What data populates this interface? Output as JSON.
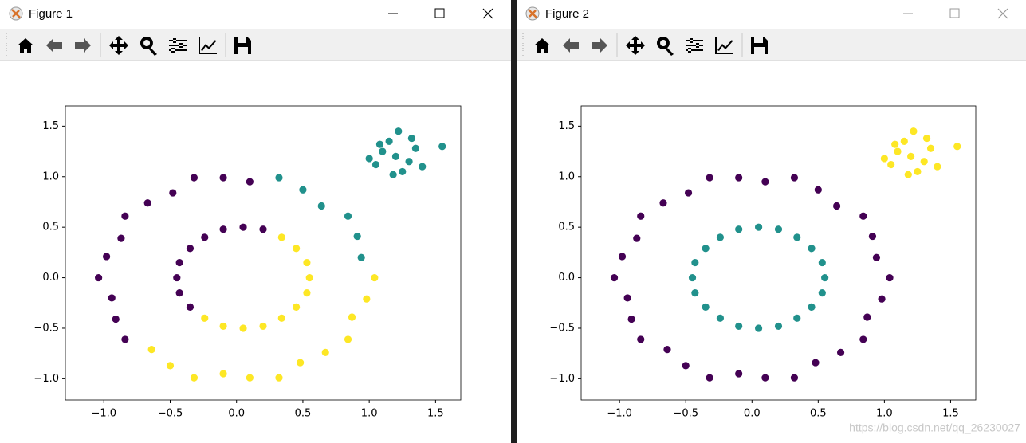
{
  "windows": [
    {
      "title": "Figure 1"
    },
    {
      "title": "Figure 2"
    }
  ],
  "watermark": "https://blog.csdn.net/qq_26230027",
  "chart_data": [
    {
      "type": "scatter",
      "xlim": [
        -1.29,
        1.69
      ],
      "ylim": [
        -1.21,
        1.7
      ],
      "xticks": [
        {
          "value": -1,
          "label": "−1.0"
        },
        {
          "value": -0.5,
          "label": "−0.5"
        },
        {
          "value": 0,
          "label": "0.0"
        },
        {
          "value": 0.5,
          "label": "0.5"
        },
        {
          "value": 1,
          "label": "1.0"
        },
        {
          "value": 1.5,
          "label": "1.5"
        }
      ],
      "yticks": [
        {
          "value": -1,
          "label": "−1.0"
        },
        {
          "value": -0.5,
          "label": "−0.5"
        },
        {
          "value": 0,
          "label": "0.0"
        },
        {
          "value": 0.5,
          "label": "0.5"
        },
        {
          "value": 1,
          "label": "1.0"
        },
        {
          "value": 1.5,
          "label": "1.5"
        }
      ],
      "series": [
        {
          "color": "#440154",
          "x": [
            0.1,
            -0.1,
            -0.32,
            -0.48,
            -0.67,
            -0.84,
            -0.87,
            -0.98,
            -1.04,
            -0.94,
            -0.91,
            -0.84,
            0.2,
            0.05,
            -0.1,
            -0.24,
            -0.35,
            -0.43,
            -0.45,
            -0.43,
            -0.35
          ],
          "values": [
            0.95,
            0.99,
            0.99,
            0.84,
            0.74,
            0.61,
            0.39,
            0.21,
            0.0,
            -0.2,
            -0.41,
            -0.61,
            0.48,
            0.5,
            0.48,
            0.4,
            0.29,
            0.15,
            0.0,
            -0.15,
            -0.29
          ]
        },
        {
          "color": "#21918c",
          "x": [
            0.94,
            0.91,
            0.84,
            0.64,
            0.5,
            0.32,
            1.2,
            1.1,
            1.3,
            1.15,
            1.25,
            1.05,
            1.35,
            1.22,
            1.0,
            1.4,
            1.18,
            1.32,
            1.55,
            1.08
          ],
          "values": [
            0.2,
            0.41,
            0.61,
            0.71,
            0.87,
            0.99,
            1.2,
            1.25,
            1.15,
            1.35,
            1.05,
            1.12,
            1.28,
            1.45,
            1.18,
            1.1,
            1.02,
            1.38,
            1.3,
            1.32
          ]
        },
        {
          "color": "#fde725",
          "x": [
            -0.64,
            -0.5,
            -0.32,
            -0.1,
            0.1,
            0.32,
            0.48,
            0.67,
            0.84,
            0.87,
            0.98,
            1.04,
            -0.24,
            -0.1,
            0.05,
            0.2,
            0.34,
            0.45,
            0.53,
            0.55,
            0.53,
            0.45,
            0.34
          ],
          "values": [
            -0.71,
            -0.87,
            -0.99,
            -0.95,
            -0.99,
            -0.99,
            -0.84,
            -0.74,
            -0.61,
            -0.39,
            -0.21,
            0.0,
            -0.4,
            -0.48,
            -0.5,
            -0.48,
            -0.4,
            -0.29,
            -0.15,
            0.0,
            0.15,
            0.29,
            0.4
          ]
        }
      ]
    },
    {
      "type": "scatter",
      "xlim": [
        -1.29,
        1.69
      ],
      "ylim": [
        -1.21,
        1.7
      ],
      "xticks": [
        {
          "value": -1,
          "label": "−1.0"
        },
        {
          "value": -0.5,
          "label": "−0.5"
        },
        {
          "value": 0,
          "label": "0.0"
        },
        {
          "value": 0.5,
          "label": "0.5"
        },
        {
          "value": 1,
          "label": "1.0"
        },
        {
          "value": 1.5,
          "label": "1.5"
        }
      ],
      "yticks": [
        {
          "value": -1,
          "label": "−1.0"
        },
        {
          "value": -0.5,
          "label": "−0.5"
        },
        {
          "value": 0,
          "label": "0.0"
        },
        {
          "value": 0.5,
          "label": "0.5"
        },
        {
          "value": 1,
          "label": "1.0"
        },
        {
          "value": 1.5,
          "label": "1.5"
        }
      ],
      "series": [
        {
          "color": "#440154",
          "x": [
            1.04,
            0.94,
            0.91,
            0.84,
            0.64,
            0.5,
            0.32,
            0.1,
            -0.1,
            -0.32,
            -0.48,
            -0.67,
            -0.84,
            -0.87,
            -0.98,
            -1.04,
            -0.94,
            -0.91,
            -0.84,
            -0.64,
            -0.5,
            -0.32,
            -0.1,
            0.1,
            0.32,
            0.48,
            0.67,
            0.84,
            0.87,
            0.98
          ],
          "values": [
            0.0,
            0.2,
            0.41,
            0.61,
            0.71,
            0.87,
            0.99,
            0.95,
            0.99,
            0.99,
            0.84,
            0.74,
            0.61,
            0.39,
            0.21,
            0.0,
            -0.2,
            -0.41,
            -0.61,
            -0.71,
            -0.87,
            -0.99,
            -0.95,
            -0.99,
            -0.99,
            -0.84,
            -0.74,
            -0.61,
            -0.39,
            -0.21
          ]
        },
        {
          "color": "#21918c",
          "x": [
            0.55,
            0.53,
            0.45,
            0.34,
            0.2,
            0.05,
            -0.1,
            -0.24,
            -0.35,
            -0.43,
            -0.45,
            -0.43,
            -0.35,
            -0.24,
            -0.1,
            0.05,
            0.2,
            0.34,
            0.45,
            0.53
          ],
          "values": [
            0.0,
            0.15,
            0.29,
            0.4,
            0.48,
            0.5,
            0.48,
            0.4,
            0.29,
            0.15,
            0.0,
            -0.15,
            -0.29,
            -0.4,
            -0.48,
            -0.5,
            -0.48,
            -0.4,
            -0.29,
            -0.15
          ]
        },
        {
          "color": "#fde725",
          "x": [
            1.2,
            1.1,
            1.3,
            1.15,
            1.25,
            1.05,
            1.35,
            1.22,
            1.0,
            1.4,
            1.18,
            1.32,
            1.55,
            1.08
          ],
          "values": [
            1.2,
            1.25,
            1.15,
            1.35,
            1.05,
            1.12,
            1.28,
            1.45,
            1.18,
            1.1,
            1.02,
            1.38,
            1.3,
            1.32
          ]
        }
      ]
    }
  ]
}
